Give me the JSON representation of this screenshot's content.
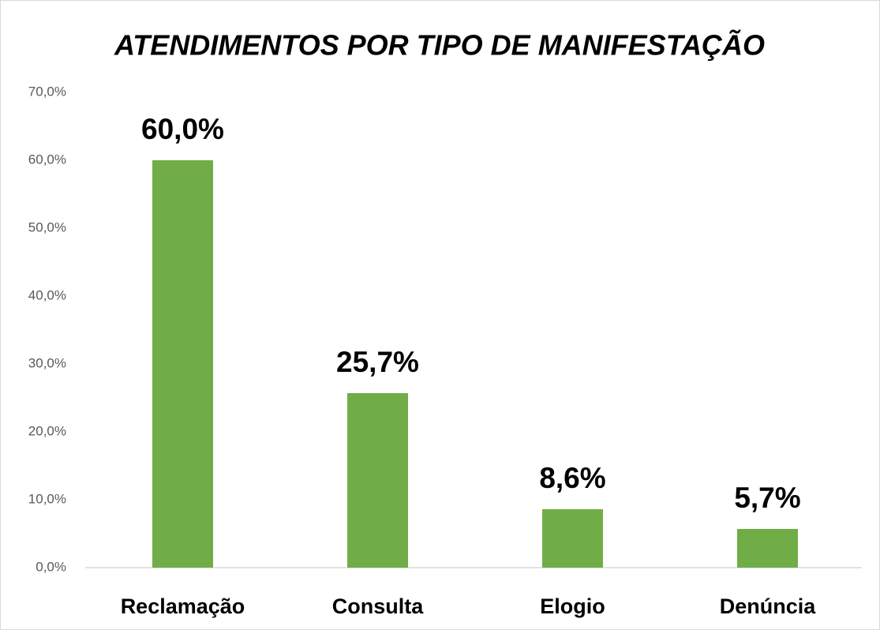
{
  "chart_data": {
    "type": "bar",
    "title": "ATENDIMENTOS POR TIPO DE MANIFESTAÇÃO",
    "categories": [
      "Reclamação",
      "Consulta",
      "Elogio",
      "Denúncia"
    ],
    "values": [
      60.0,
      25.7,
      8.6,
      5.7
    ],
    "value_labels": [
      "60,0%",
      "25,7%",
      "8,6%",
      "5,7%"
    ],
    "color": "#70ad47",
    "ylim": [
      0,
      70
    ],
    "yticks": [
      {
        "value": 0,
        "label": "0,0%"
      },
      {
        "value": 10,
        "label": "10,0%"
      },
      {
        "value": 20,
        "label": "20,0%"
      },
      {
        "value": 30,
        "label": "30,0%"
      },
      {
        "value": 40,
        "label": "40,0%"
      },
      {
        "value": 50,
        "label": "50,0%"
      },
      {
        "value": 60,
        "label": "60,0%"
      },
      {
        "value": 70,
        "label": "70,0%"
      }
    ],
    "grid": false
  }
}
